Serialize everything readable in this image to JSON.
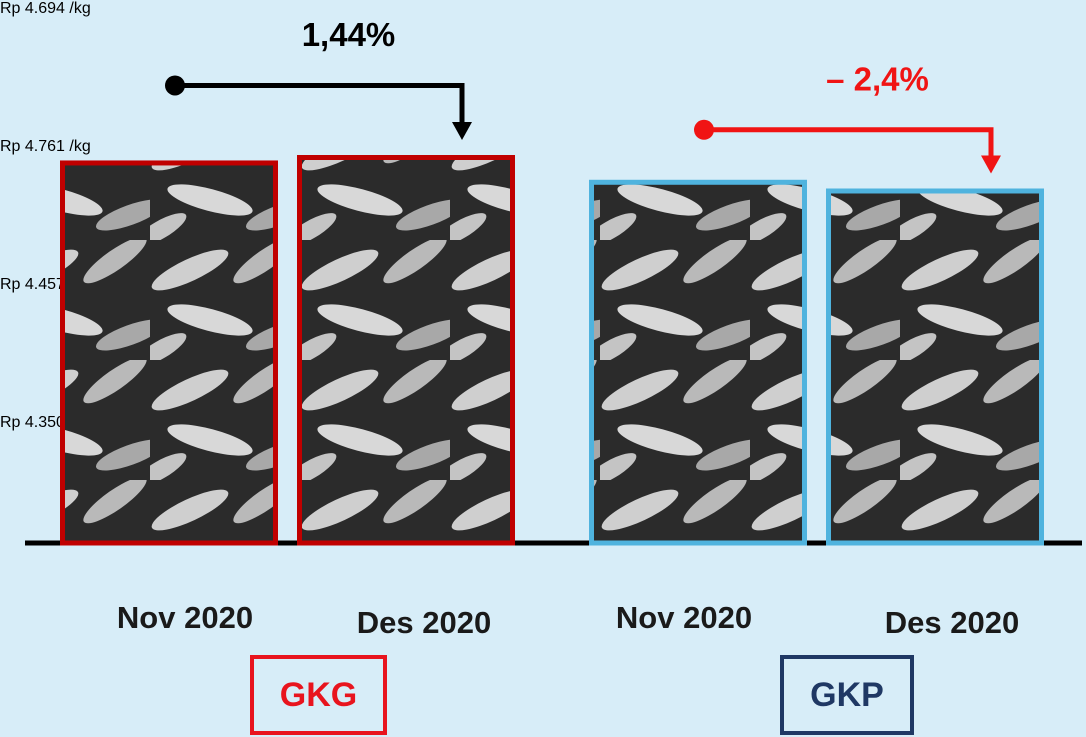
{
  "chart_data": {
    "type": "bar",
    "categories": [
      "Nov 2020",
      "Des 2020"
    ],
    "series": [
      {
        "name": "GKG",
        "color": "#c00000",
        "name_color": "#e8141e",
        "values": [
          4694,
          4761
        ],
        "value_labels": [
          "Rp 4.694\n/kg",
          "Rp 4.761\n/kg"
        ],
        "change": "1,44%",
        "change_color": "#000000"
      },
      {
        "name": "GKP",
        "color": "#4fb3de",
        "name_color": "#1f3864",
        "values": [
          4457,
          4350
        ],
        "value_labels": [
          "Rp 4.457\n/kg",
          "Rp 4.350\n/kg"
        ],
        "change": "– 2,4%",
        "change_color": "#f01414"
      }
    ]
  }
}
